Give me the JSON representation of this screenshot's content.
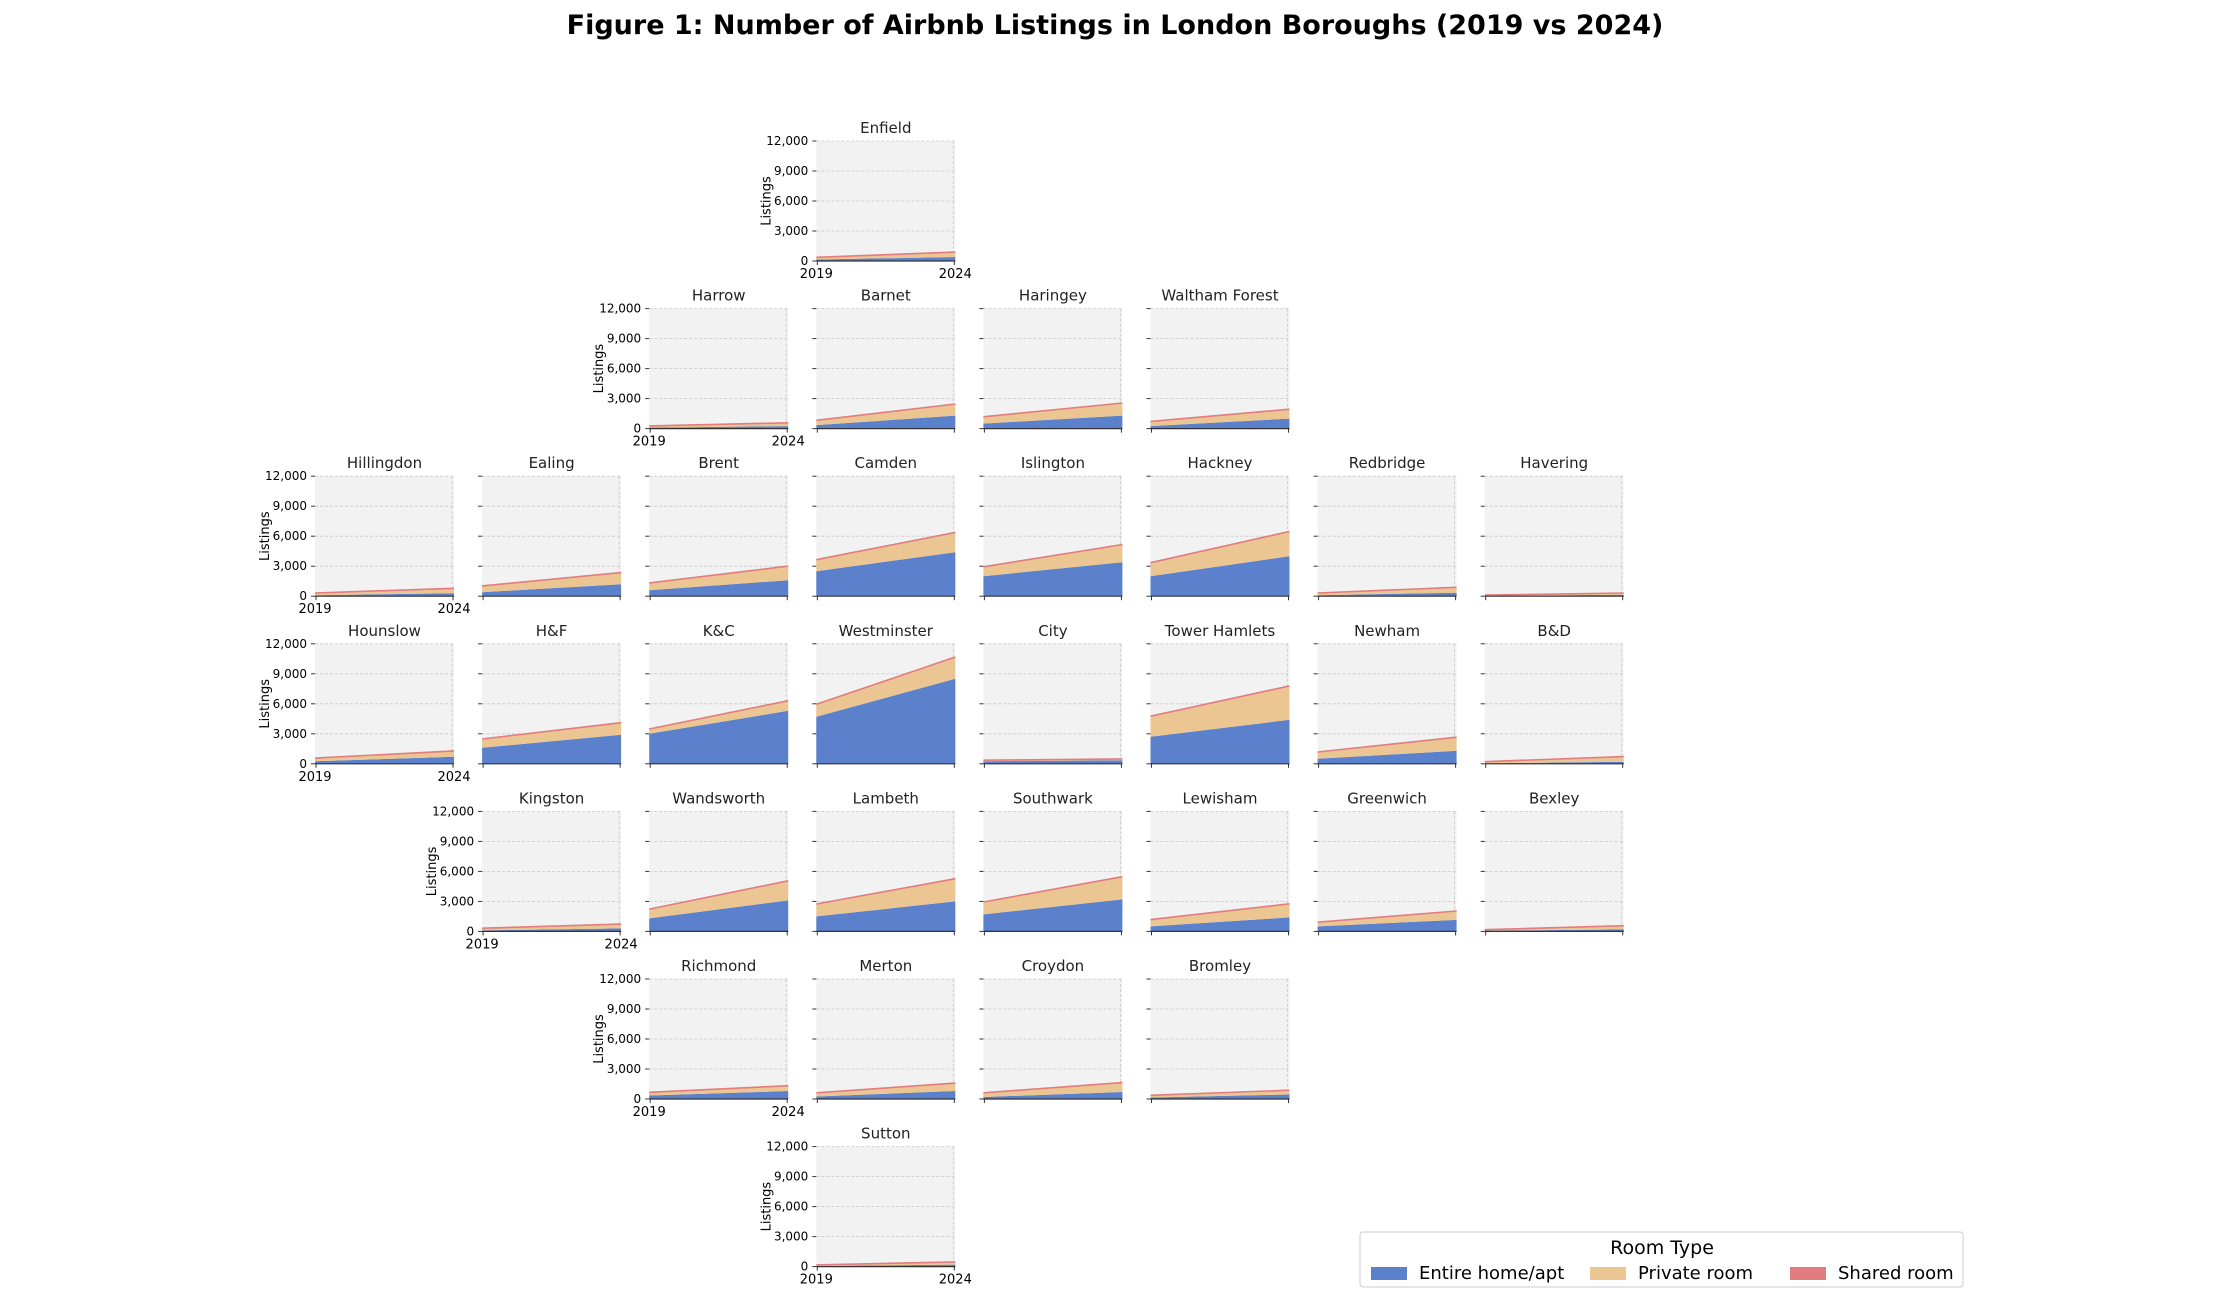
{
  "chart_data": {
    "type": "area",
    "title": "Figure 1: Number of Airbnb Listings in London Boroughs (2019 vs 2024)",
    "x": [
      "2019",
      "2024"
    ],
    "ylabel": "Listings",
    "ylim": [
      0,
      12000
    ],
    "yticks": [
      0,
      3000,
      6000,
      9000,
      12000
    ],
    "ytick_labels": [
      "0",
      "3,000",
      "6,000",
      "9,000",
      "12,000"
    ],
    "stacked": true,
    "grid": true,
    "legend": {
      "title": "Room Type",
      "placement": "bottom-right",
      "entries": [
        "Entire home/apt",
        "Private room",
        "Shared room"
      ]
    },
    "colors": {
      "Entire home/apt": "#5b80cc",
      "Private room": "#ecc692",
      "Shared room": "#e27c80",
      "panel_bg": "#f2f2f2"
    },
    "panels": [
      {
        "name": "Enfield",
        "row": 0,
        "col": 4,
        "entire": [
          150,
          400
        ],
        "private": [
          200,
          450
        ],
        "shared": [
          20,
          40
        ]
      },
      {
        "name": "Harrow",
        "row": 1,
        "col": 3,
        "entire": [
          100,
          250
        ],
        "private": [
          150,
          300
        ],
        "shared": [
          20,
          30
        ]
      },
      {
        "name": "Barnet",
        "row": 1,
        "col": 4,
        "entire": [
          350,
          1300
        ],
        "private": [
          450,
          1100
        ],
        "shared": [
          30,
          60
        ]
      },
      {
        "name": "Haringey",
        "row": 1,
        "col": 5,
        "entire": [
          500,
          1300
        ],
        "private": [
          650,
          1200
        ],
        "shared": [
          30,
          60
        ]
      },
      {
        "name": "Waltham Forest",
        "row": 1,
        "col": 6,
        "entire": [
          250,
          1000
        ],
        "private": [
          450,
          900
        ],
        "shared": [
          20,
          40
        ]
      },
      {
        "name": "Hillingdon",
        "row": 2,
        "col": 1,
        "entire": [
          100,
          300
        ],
        "private": [
          200,
          450
        ],
        "shared": [
          20,
          40
        ]
      },
      {
        "name": "Ealing",
        "row": 2,
        "col": 2,
        "entire": [
          400,
          1200
        ],
        "private": [
          600,
          1100
        ],
        "shared": [
          30,
          60
        ]
      },
      {
        "name": "Brent",
        "row": 2,
        "col": 3,
        "entire": [
          600,
          1600
        ],
        "private": [
          700,
          1350
        ],
        "shared": [
          30,
          60
        ]
      },
      {
        "name": "Camden",
        "row": 2,
        "col": 4,
        "entire": [
          2500,
          4400
        ],
        "private": [
          1100,
          1900
        ],
        "shared": [
          50,
          80
        ]
      },
      {
        "name": "Islington",
        "row": 2,
        "col": 5,
        "entire": [
          2000,
          3400
        ],
        "private": [
          900,
          1700
        ],
        "shared": [
          40,
          70
        ]
      },
      {
        "name": "Hackney",
        "row": 2,
        "col": 6,
        "entire": [
          2000,
          4000
        ],
        "private": [
          1300,
          2400
        ],
        "shared": [
          50,
          80
        ]
      },
      {
        "name": "Redbridge",
        "row": 2,
        "col": 7,
        "entire": [
          100,
          350
        ],
        "private": [
          200,
          500
        ],
        "shared": [
          20,
          40
        ]
      },
      {
        "name": "Havering",
        "row": 2,
        "col": 8,
        "entire": [
          40,
          150
        ],
        "private": [
          60,
          150
        ],
        "shared": [
          10,
          20
        ]
      },
      {
        "name": "Hounslow",
        "row": 3,
        "col": 1,
        "entire": [
          250,
          700
        ],
        "private": [
          300,
          550
        ],
        "shared": [
          20,
          40
        ]
      },
      {
        "name": "H&F",
        "row": 3,
        "col": 2,
        "entire": [
          1600,
          2900
        ],
        "private": [
          850,
          1150
        ],
        "shared": [
          30,
          60
        ]
      },
      {
        "name": "K&C",
        "row": 3,
        "col": 3,
        "entire": [
          3000,
          5300
        ],
        "private": [
          450,
          950
        ],
        "shared": [
          30,
          60
        ]
      },
      {
        "name": "Westminster",
        "row": 3,
        "col": 4,
        "entire": [
          4700,
          8500
        ],
        "private": [
          1200,
          2100
        ],
        "shared": [
          50,
          80
        ]
      },
      {
        "name": "City",
        "row": 3,
        "col": 5,
        "entire": [
          250,
          350
        ],
        "private": [
          100,
          120
        ],
        "shared": [
          10,
          20
        ]
      },
      {
        "name": "Tower Hamlets",
        "row": 3,
        "col": 6,
        "entire": [
          2700,
          4400
        ],
        "private": [
          2000,
          3300
        ],
        "shared": [
          60,
          90
        ]
      },
      {
        "name": "Newham",
        "row": 3,
        "col": 7,
        "entire": [
          500,
          1300
        ],
        "private": [
          650,
          1300
        ],
        "shared": [
          30,
          60
        ]
      },
      {
        "name": "B&D",
        "row": 3,
        "col": 8,
        "entire": [
          50,
          200
        ],
        "private": [
          150,
          500
        ],
        "shared": [
          10,
          20
        ]
      },
      {
        "name": "Kingston",
        "row": 4,
        "col": 2,
        "entire": [
          100,
          300
        ],
        "private": [
          200,
          400
        ],
        "shared": [
          20,
          30
        ]
      },
      {
        "name": "Wandsworth",
        "row": 4,
        "col": 3,
        "entire": [
          1300,
          3100
        ],
        "private": [
          900,
          1900
        ],
        "shared": [
          30,
          60
        ]
      },
      {
        "name": "Lambeth",
        "row": 4,
        "col": 4,
        "entire": [
          1500,
          3000
        ],
        "private": [
          1200,
          2200
        ],
        "shared": [
          40,
          70
        ]
      },
      {
        "name": "Southwark",
        "row": 4,
        "col": 5,
        "entire": [
          1700,
          3200
        ],
        "private": [
          1200,
          2200
        ],
        "shared": [
          40,
          70
        ]
      },
      {
        "name": "Lewisham",
        "row": 4,
        "col": 6,
        "entire": [
          500,
          1400
        ],
        "private": [
          650,
          1300
        ],
        "shared": [
          30,
          60
        ]
      },
      {
        "name": "Greenwich",
        "row": 4,
        "col": 7,
        "entire": [
          500,
          1150
        ],
        "private": [
          400,
          850
        ],
        "shared": [
          20,
          40
        ]
      },
      {
        "name": "Bexley",
        "row": 4,
        "col": 8,
        "entire": [
          60,
          200
        ],
        "private": [
          100,
          350
        ],
        "shared": [
          10,
          20
        ]
      },
      {
        "name": "Richmond",
        "row": 5,
        "col": 3,
        "entire": [
          350,
          800
        ],
        "private": [
          300,
          500
        ],
        "shared": [
          20,
          30
        ]
      },
      {
        "name": "Merton",
        "row": 5,
        "col": 4,
        "entire": [
          250,
          800
        ],
        "private": [
          350,
          750
        ],
        "shared": [
          20,
          40
        ]
      },
      {
        "name": "Croydon",
        "row": 5,
        "col": 5,
        "entire": [
          200,
          700
        ],
        "private": [
          400,
          900
        ],
        "shared": [
          20,
          40
        ]
      },
      {
        "name": "Bromley",
        "row": 5,
        "col": 6,
        "entire": [
          150,
          450
        ],
        "private": [
          200,
          400
        ],
        "shared": [
          20,
          30
        ]
      },
      {
        "name": "Sutton",
        "row": 6,
        "col": 4,
        "entire": [
          60,
          200
        ],
        "private": [
          100,
          250
        ],
        "shared": [
          10,
          20
        ]
      }
    ]
  }
}
